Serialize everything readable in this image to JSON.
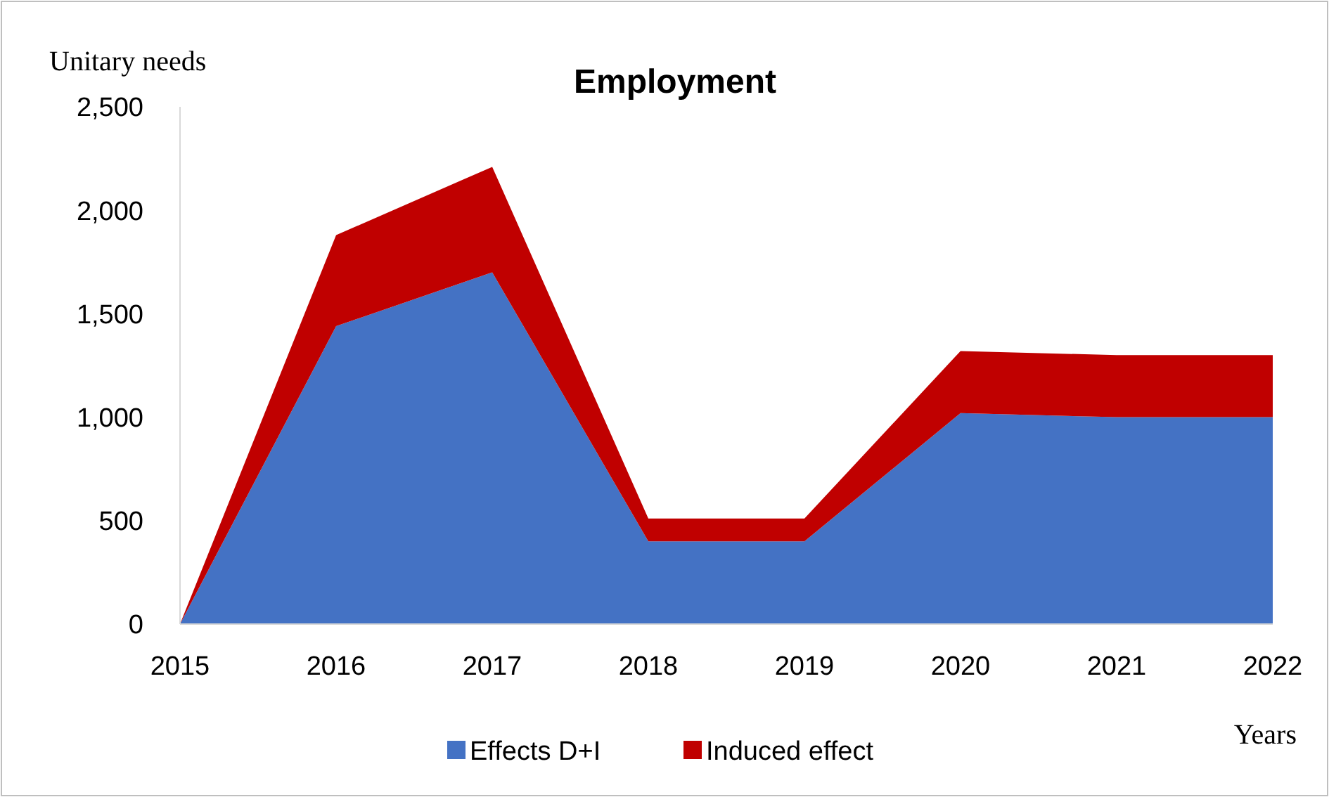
{
  "chart_data": {
    "type": "area",
    "title": "Employment",
    "xlabel": "Years",
    "ylabel": "Unitary needs",
    "stacked": true,
    "x": [
      2015,
      2016,
      2017,
      2018,
      2019,
      2020,
      2021,
      2022
    ],
    "series": [
      {
        "name": "Effects D+I",
        "color": "#4472c4",
        "values": [
          0,
          1440,
          1700,
          400,
          400,
          1020,
          1000,
          1000
        ]
      },
      {
        "name": "Induced effect",
        "color": "#c00000",
        "values": [
          0,
          440,
          510,
          110,
          110,
          300,
          300,
          300
        ]
      }
    ],
    "xlim": [
      2015,
      2022
    ],
    "xticks": [
      2015,
      2016,
      2017,
      2018,
      2019,
      2020,
      2021,
      2022
    ],
    "ylim": [
      0,
      2500
    ],
    "yticks": [
      0,
      {
        "value": 500,
        "label": "500"
      },
      {
        "value": 1000,
        "label": "1,000"
      },
      {
        "value": 1500,
        "label": "1,500"
      },
      {
        "value": 2000,
        "label": "2,000"
      },
      {
        "value": 2500,
        "label": "2,500"
      }
    ],
    "legend": "bottom",
    "grid": false
  }
}
